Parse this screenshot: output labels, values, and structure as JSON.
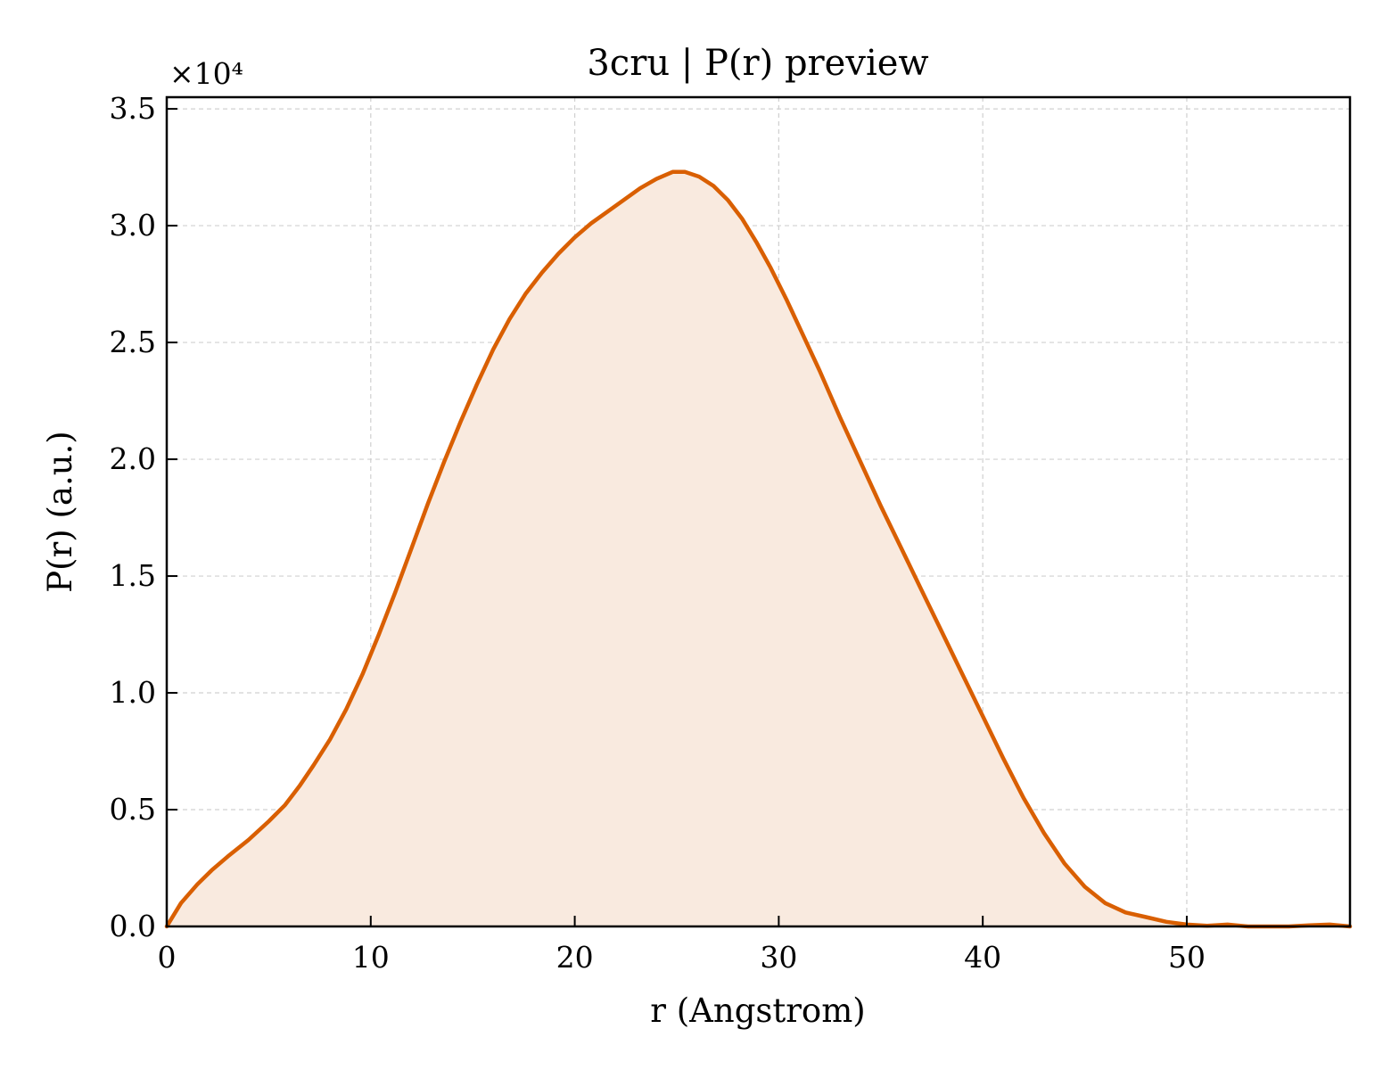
{
  "chart_data": {
    "type": "area",
    "title": "3cru | P(r) preview",
    "xlabel": "r (Angstrom)",
    "ylabel": "P(r) (a.u.)",
    "y_offset_label": "×10⁴",
    "xlim": [
      0,
      58
    ],
    "ylim": [
      0,
      35500
    ],
    "x_ticks": [
      0,
      10,
      20,
      30,
      40,
      50
    ],
    "x_tick_labels": [
      "0",
      "10",
      "20",
      "30",
      "40",
      "50"
    ],
    "y_ticks": [
      0,
      5000,
      10000,
      15000,
      20000,
      25000,
      30000,
      35000
    ],
    "y_tick_labels": [
      "0.0",
      "0.5",
      "1.0",
      "1.5",
      "2.0",
      "2.5",
      "3.0",
      "3.5"
    ],
    "grid": true,
    "colors": {
      "line": "#d95f02",
      "fill": "#f9eadf"
    },
    "series": [
      {
        "x": [
          0,
          0.7,
          1.5,
          2.2,
          3.0,
          4.0,
          5.0,
          5.8,
          6.5,
          7.2,
          8.0,
          8.8,
          9.6,
          10.4,
          11.2,
          12.0,
          12.8,
          13.6,
          14.4,
          15.2,
          16.0,
          16.8,
          17.6,
          18.4,
          19.2,
          20.0,
          20.8,
          21.6,
          22.4,
          23.2,
          24.0,
          24.8,
          25.4,
          26.1,
          26.8,
          27.5,
          28.2,
          28.9,
          29.6,
          30.4,
          31.2,
          32.0,
          33.0,
          34.0,
          35.0,
          36.0,
          37.0,
          38.0,
          39.0,
          40.0,
          41.0,
          42.0,
          43.0,
          44.0,
          45.0,
          46.0,
          47.0,
          48.0,
          49.0,
          50.0,
          51.0,
          52.0,
          53.0,
          54.0,
          55.0,
          56.0,
          57.0,
          58.0
        ],
        "y": [
          0,
          1000,
          1800,
          2400,
          3000,
          3700,
          4500,
          5200,
          6000,
          6900,
          8000,
          9300,
          10800,
          12500,
          14300,
          16200,
          18100,
          19900,
          21600,
          23200,
          24700,
          26000,
          27100,
          28000,
          28800,
          29500,
          30100,
          30600,
          31100,
          31600,
          32000,
          32300,
          32300,
          32100,
          31700,
          31100,
          30300,
          29300,
          28200,
          26800,
          25300,
          23800,
          21800,
          19900,
          18000,
          16200,
          14400,
          12600,
          10800,
          9000,
          7200,
          5500,
          4000,
          2700,
          1700,
          1000,
          600,
          400,
          200,
          80,
          30,
          80,
          0,
          0,
          0,
          50,
          80,
          0
        ]
      }
    ]
  }
}
